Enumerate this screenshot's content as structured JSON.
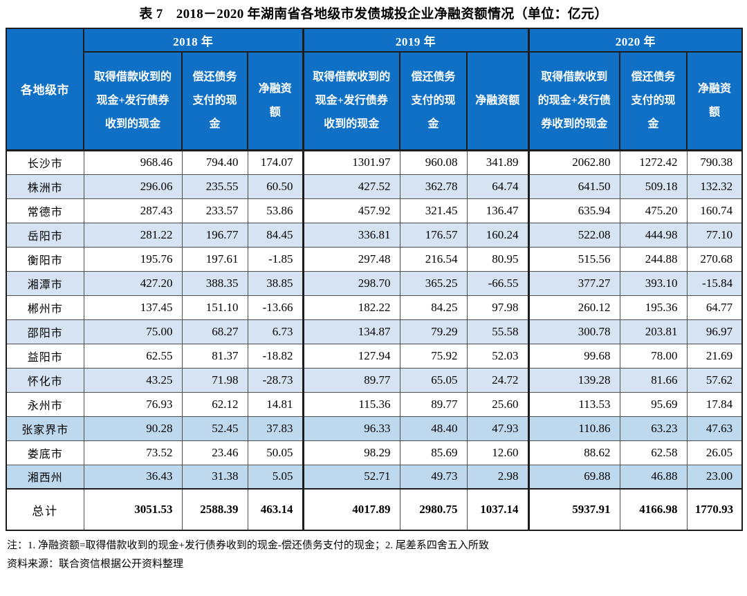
{
  "title": "表 7　2018－2020 年湖南省各地级市发债城投企业净融资额情况（单位：亿元）",
  "table": {
    "corner_header": "各地级市",
    "years": [
      "2018 年",
      "2019 年",
      "2020 年"
    ],
    "sub_headers": [
      "取得借款收到的现金+发行债券收到的现金",
      "偿还债务支付的现金",
      "净融资额"
    ],
    "rows": [
      {
        "city": "长沙市",
        "shade": "",
        "values": [
          "968.46",
          "794.40",
          "174.07",
          "1301.97",
          "960.08",
          "341.89",
          "2062.80",
          "1272.42",
          "790.38"
        ]
      },
      {
        "city": "株洲市",
        "shade": "s1",
        "values": [
          "296.06",
          "235.55",
          "60.50",
          "427.52",
          "362.78",
          "64.74",
          "641.50",
          "509.18",
          "132.32"
        ]
      },
      {
        "city": "常德市",
        "shade": "",
        "values": [
          "287.43",
          "233.57",
          "53.86",
          "457.92",
          "321.45",
          "136.47",
          "635.94",
          "475.20",
          "160.74"
        ]
      },
      {
        "city": "岳阳市",
        "shade": "s1",
        "values": [
          "281.22",
          "196.77",
          "84.45",
          "336.81",
          "176.57",
          "160.24",
          "522.08",
          "444.98",
          "77.10"
        ]
      },
      {
        "city": "衡阳市",
        "shade": "",
        "values": [
          "195.76",
          "197.61",
          "-1.85",
          "297.48",
          "216.54",
          "80.95",
          "515.56",
          "244.88",
          "270.68"
        ]
      },
      {
        "city": "湘潭市",
        "shade": "s1",
        "values": [
          "427.20",
          "388.35",
          "38.85",
          "298.70",
          "365.25",
          "-66.55",
          "377.27",
          "393.10",
          "-15.84"
        ]
      },
      {
        "city": "郴州市",
        "shade": "",
        "values": [
          "137.45",
          "151.10",
          "-13.66",
          "182.22",
          "84.25",
          "97.98",
          "260.12",
          "195.36",
          "64.77"
        ]
      },
      {
        "city": "邵阳市",
        "shade": "s1",
        "values": [
          "75.00",
          "68.27",
          "6.73",
          "134.87",
          "79.29",
          "55.58",
          "300.78",
          "203.81",
          "96.97"
        ]
      },
      {
        "city": "益阳市",
        "shade": "",
        "values": [
          "62.55",
          "81.37",
          "-18.82",
          "127.94",
          "75.92",
          "52.03",
          "99.68",
          "78.00",
          "21.69"
        ]
      },
      {
        "city": "怀化市",
        "shade": "s1",
        "values": [
          "43.25",
          "71.98",
          "-28.73",
          "89.77",
          "65.05",
          "24.72",
          "139.28",
          "81.66",
          "57.62"
        ]
      },
      {
        "city": "永州市",
        "shade": "",
        "values": [
          "76.93",
          "62.12",
          "14.81",
          "115.36",
          "89.77",
          "25.60",
          "113.53",
          "95.69",
          "17.84"
        ]
      },
      {
        "city": "张家界市",
        "shade": "s2",
        "values": [
          "90.28",
          "52.45",
          "37.83",
          "96.33",
          "48.40",
          "47.93",
          "110.86",
          "63.23",
          "47.63"
        ]
      },
      {
        "city": "娄底市",
        "shade": "",
        "values": [
          "73.52",
          "23.46",
          "50.05",
          "98.29",
          "85.69",
          "12.60",
          "88.62",
          "62.58",
          "26.05"
        ]
      },
      {
        "city": "湘西州",
        "shade": "s2",
        "values": [
          "36.43",
          "31.38",
          "5.05",
          "52.71",
          "49.73",
          "2.98",
          "69.88",
          "46.88",
          "23.00"
        ]
      }
    ],
    "total": {
      "label": "总计",
      "values": [
        "3051.53",
        "2588.39",
        "463.14",
        "4017.89",
        "2980.75",
        "1037.14",
        "5937.91",
        "4166.98",
        "1770.93"
      ]
    }
  },
  "notes": {
    "note": "注：1. 净融资额=取得借款收到的现金+发行债券收到的现金-偿还债务支付的现金；2. 尾差系四舍五入所致",
    "source": "资料来源：联合资信根据公开资料整理"
  },
  "colors": {
    "header_bg": "#0f70c5",
    "stripe": "#d6e3f2",
    "stripe_dark": "#bed8ee",
    "grid": "#4d4d4d"
  }
}
